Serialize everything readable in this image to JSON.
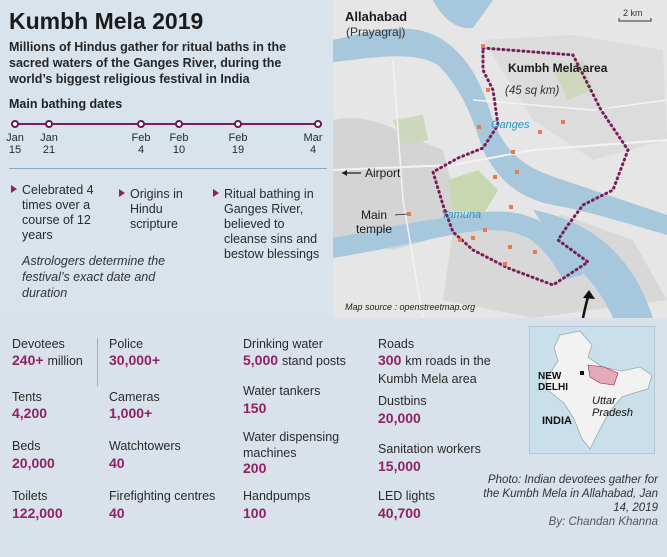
{
  "title": "Kumbh Mela 2019",
  "subtitle": "Millions of Hindus gather for ritual baths in the sacred waters of the Ganges River, during the world’s biggest religious festival in India",
  "bathing": {
    "heading": "Main bathing dates",
    "dates": [
      {
        "month": "Jan",
        "day": "15"
      },
      {
        "month": "Jan",
        "day": "21"
      },
      {
        "month": "Feb",
        "day": "4"
      },
      {
        "month": "Feb",
        "day": "10"
      },
      {
        "month": "Feb",
        "day": "19"
      },
      {
        "month": "Mar",
        "day": "4"
      }
    ]
  },
  "facts": [
    "Celebrated 4 times over a course of 12 years",
    "Origins in Hindu scripture",
    "Ritual bathing in Ganges River, believed to cleanse sins and bestow blessings"
  ],
  "astrologers_note": "Astrologers determine the festival’s exact date and duration",
  "map": {
    "city": "Allahabad",
    "city_alt": "(Prayagraj)",
    "scale": "2 km",
    "area_name": "Kumbh Mela area",
    "area_size": "(45 sq km)",
    "river1": "Ganges",
    "river2": "Yamuna",
    "airport": "Airport",
    "temple": "Main temple",
    "source": "Map source : openstreetmap.org"
  },
  "stats": {
    "devotees": {
      "label": "Devotees",
      "value": "240+",
      "unit": "million"
    },
    "tents": {
      "label": "Tents",
      "value": "4,200"
    },
    "beds": {
      "label": "Beds",
      "value": "20,000"
    },
    "toilets": {
      "label": "Toilets",
      "value": "122,000"
    },
    "police": {
      "label": "Police",
      "value": "30,000+"
    },
    "cameras": {
      "label": "Cameras",
      "value": "1,000+"
    },
    "watchtowers": {
      "label": "Watchtowers",
      "value": "40"
    },
    "firefighting": {
      "label": "Firefighting centres",
      "value": "40"
    },
    "drinking": {
      "label": "Drinking water",
      "value": "5,000",
      "unit": "stand posts"
    },
    "tankers": {
      "label": "Water tankers",
      "value": "150"
    },
    "dispensing": {
      "label": "Water dispensing machines",
      "value": "200"
    },
    "handpumps": {
      "label": "Handpumps",
      "value": "100"
    },
    "roads": {
      "label": "Roads",
      "value": "300",
      "unit": "km roads in the Kumbh Mela area"
    },
    "dustbins": {
      "label": "Dustbins",
      "value": "20,000"
    },
    "sanitation": {
      "label": "Sanitation workers",
      "value": "15,000"
    },
    "led": {
      "label": "LED lights",
      "value": "40,700"
    }
  },
  "inset": {
    "delhi": "NEW DELHI",
    "state": "Uttar Pradesh",
    "country": "INDIA"
  },
  "caption": {
    "text": "Photo: Indian devotees gather for the Kumbh Mela in Allahabad, Jan 14, 2019",
    "byline": "By: Chandan Khanna"
  },
  "colors": {
    "accent": "#8e2262",
    "river": "#2596c8",
    "background": "#d9e2ea"
  }
}
